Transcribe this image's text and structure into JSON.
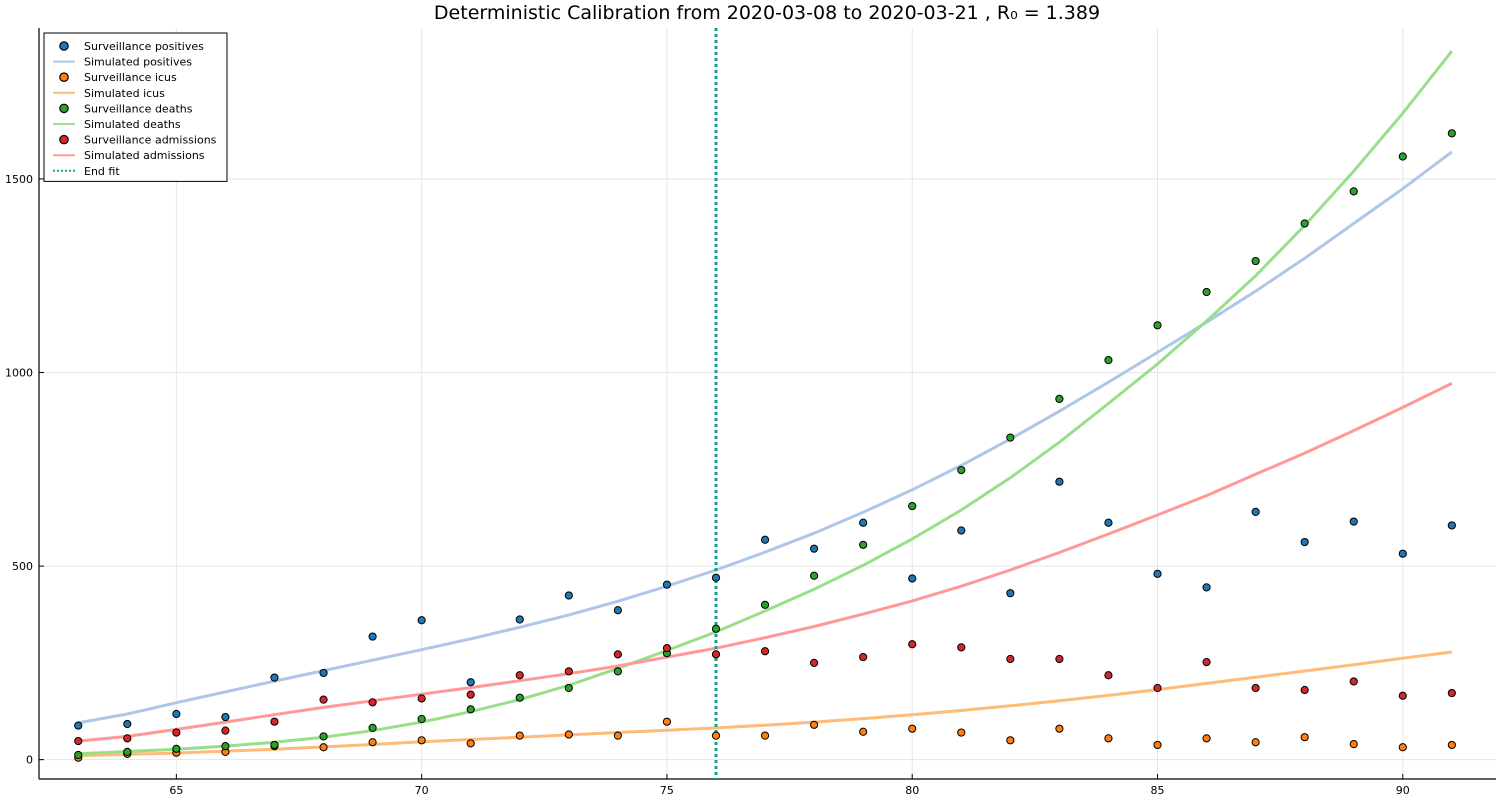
{
  "chart_data": {
    "type": "scatter",
    "title": "Deterministic Calibration from 2020-03-08 to 2020-03-21 , R₀ = 1.389",
    "xlabel": "",
    "ylabel": "",
    "xlim": [
      62.2,
      91.9
    ],
    "ylim": [
      -50,
      1890
    ],
    "xticks": [
      65,
      70,
      75,
      80,
      85,
      90
    ],
    "yticks": [
      0,
      500,
      1000,
      1500
    ],
    "grid": true,
    "legend_position": "top-left",
    "x": [
      63,
      64,
      65,
      66,
      67,
      68,
      69,
      70,
      71,
      72,
      73,
      74,
      75,
      76,
      77,
      78,
      79,
      80,
      81,
      82,
      83,
      84,
      85,
      86,
      87,
      88,
      89,
      90,
      91
    ],
    "series": [
      {
        "name": "Surveillance positives",
        "kind": "scatter",
        "color": "#1f77b4",
        "values": [
          88,
          92,
          118,
          110,
          212,
          224,
          318,
          360,
          200,
          362,
          424,
          386,
          452,
          470,
          568,
          545,
          612,
          468,
          592,
          430,
          718,
          612,
          480,
          445,
          640,
          562,
          615,
          532,
          605
        ]
      },
      {
        "name": "Simulated positives",
        "kind": "line",
        "color": "#aec7e8",
        "values": [
          95,
          118,
          147,
          175,
          203,
          230,
          257,
          284,
          312,
          342,
          374,
          409,
          448,
          490,
          536,
          585,
          639,
          697,
          760,
          828,
          900,
          975,
          1052,
          1130,
          1210,
          1295,
          1385,
          1475,
          1570
        ]
      },
      {
        "name": "Surveillance icus",
        "kind": "scatter",
        "color": "#ff7f0e",
        "values": [
          5,
          15,
          18,
          20,
          35,
          32,
          45,
          50,
          42,
          62,
          65,
          62,
          98,
          62,
          62,
          90,
          72,
          80,
          70,
          50,
          80,
          55,
          38,
          55,
          45,
          58,
          40,
          32,
          38
        ]
      },
      {
        "name": "Simulated icus",
        "kind": "line",
        "color": "#ffbb78",
        "values": [
          10,
          14,
          17,
          22,
          27,
          33,
          39,
          46,
          52,
          58,
          64,
          70,
          76,
          82,
          89,
          97,
          106,
          116,
          127,
          139,
          152,
          166,
          181,
          197,
          213,
          229,
          245,
          262,
          278
        ]
      },
      {
        "name": "Surveillance deaths",
        "kind": "scatter",
        "color": "#2ca02c",
        "values": [
          12,
          20,
          28,
          35,
          38,
          60,
          82,
          105,
          130,
          160,
          185,
          228,
          275,
          338,
          400,
          475,
          555,
          655,
          748,
          832,
          932,
          1032,
          1122,
          1208,
          1288,
          1385,
          1468,
          1558,
          1618
        ]
      },
      {
        "name": "Simulated deaths",
        "kind": "line",
        "color": "#98df8a",
        "values": [
          15,
          21,
          27,
          35,
          45,
          58,
          75,
          97,
          124,
          155,
          192,
          236,
          282,
          330,
          384,
          440,
          502,
          570,
          645,
          728,
          820,
          920,
          1022,
          1133,
          1250,
          1380,
          1520,
          1670,
          1830
        ]
      },
      {
        "name": "Surveillance admissions",
        "kind": "scatter",
        "color": "#d62728",
        "values": [
          48,
          55,
          70,
          75,
          98,
          155,
          148,
          158,
          168,
          218,
          228,
          272,
          288,
          272,
          280,
          250,
          265,
          298,
          290,
          260,
          260,
          218,
          185,
          252,
          185,
          180,
          202,
          165,
          172
        ]
      },
      {
        "name": "Simulated admissions",
        "kind": "line",
        "color": "#ff9896",
        "values": [
          48,
          60,
          78,
          97,
          116,
          135,
          152,
          169,
          186,
          204,
          222,
          242,
          265,
          288,
          315,
          344,
          376,
          410,
          448,
          490,
          535,
          583,
          632,
          682,
          737,
          792,
          850,
          910,
          972
        ]
      }
    ],
    "vline": {
      "name": "End fit",
      "x": 76,
      "color": "#13a489",
      "style": "dotted"
    }
  }
}
